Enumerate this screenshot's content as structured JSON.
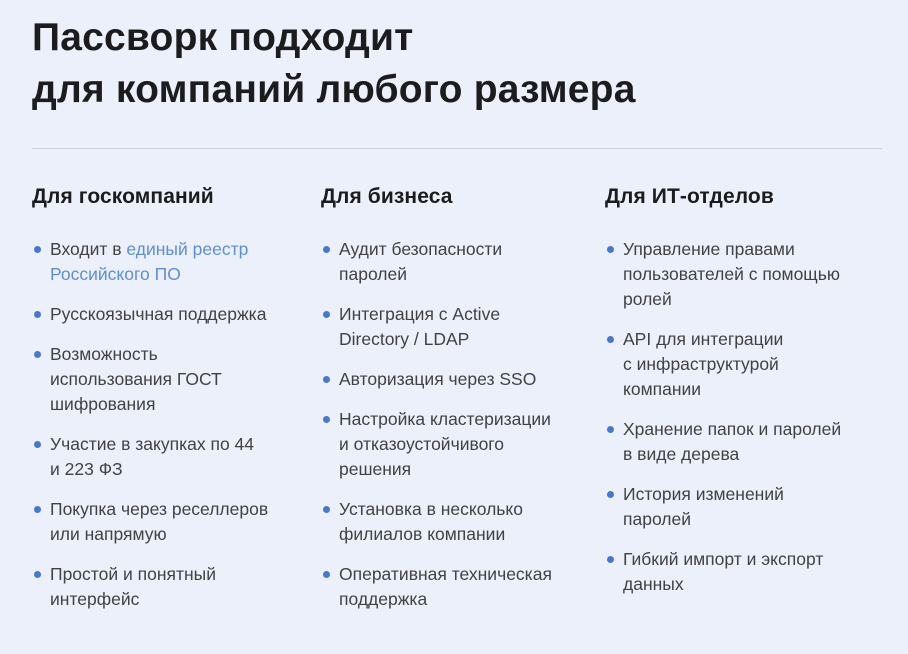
{
  "page": {
    "title": "Пассворк подходит\nдля компаний любого размера",
    "background_color": "#ECF0FA",
    "divider_color": "#C9CEDA"
  },
  "colors": {
    "heading_text": "#1C1C1E",
    "body_text": "#424245",
    "bullet": "#4778CF",
    "link": "#5E8ED8"
  },
  "columns": [
    {
      "heading": "Для госкомпаний",
      "items": [
        {
          "prefix": "Входит в ",
          "link_text": "единый реестр\nРоссийского ПО"
        },
        {
          "text": "Русскоязычная поддержка"
        },
        {
          "text": "Возможность\nиспользования ГОСТ\nшифрования"
        },
        {
          "text": "Участие в закупках по 44\nи 223 ФЗ"
        },
        {
          "text": "Покупка через реселлеров\nили напрямую"
        },
        {
          "text": "Простой и понятный\nинтерфейс"
        }
      ]
    },
    {
      "heading": "Для бизнеса",
      "items": [
        {
          "text": "Аудит безопасности\nпаролей"
        },
        {
          "text": "Интеграция с Active\nDirectory / LDAP"
        },
        {
          "text": "Авторизация через SSO"
        },
        {
          "text": "Настройка кластеризации\nи отказоустойчивого\nрешения"
        },
        {
          "text": "Установка в несколько\nфилиалов компании"
        },
        {
          "text": "Оперативная техническая\nподдержка"
        }
      ]
    },
    {
      "heading": "Для ИТ-отделов",
      "items": [
        {
          "text": "Управление правами\nпользователей с помощью\nролей"
        },
        {
          "text": "API для интеграции\nс инфраструктурой\nкомпании"
        },
        {
          "text": "Хранение папок и паролей\nв виде дерева"
        },
        {
          "text": "История изменений\nпаролей"
        },
        {
          "text": "Гибкий импорт и экспорт\nданных"
        }
      ]
    }
  ]
}
